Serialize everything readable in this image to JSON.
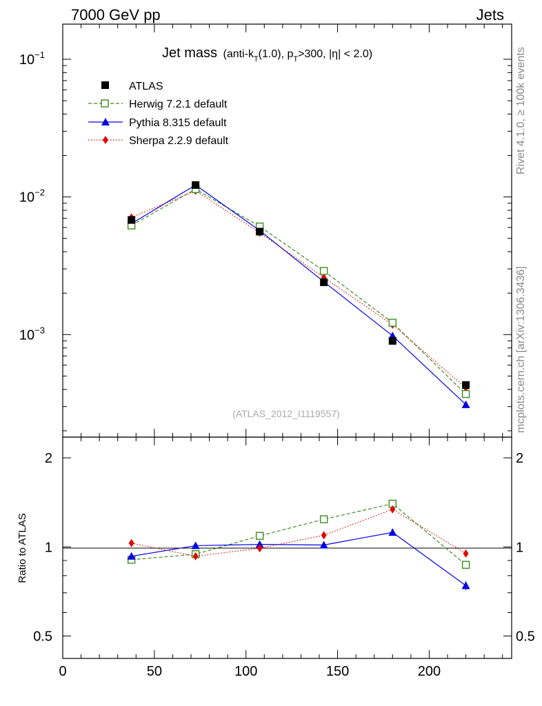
{
  "header": {
    "left": "7000 GeV pp",
    "right": "Jets"
  },
  "side": {
    "rivet": "Rivet 4.1.0, ≥ 100k events",
    "mcplots": "mcplots.cern.ch [arXiv:1306.3436]"
  },
  "title": {
    "main": "Jet mass",
    "paren_open": "(anti-k",
    "kt_sub": "T",
    "kt_rest": "(1.0), p",
    "pt_sub": "T",
    "pt_rest": ">300, |η| < 2.0)"
  },
  "analysis_id": "(ATLAS_2012_I1119557)",
  "colors": {
    "atlas": "#000000",
    "herwig": "#3a8c1a",
    "pythia": "#0000e6",
    "sherpa": "#e60000"
  },
  "chart_data": [
    {
      "type": "line",
      "panel": "main",
      "yscale": "log",
      "xlim": [
        0,
        245
      ],
      "ylim": [
        0.00018,
        0.18
      ],
      "y_ticks": [
        {
          "base": "10",
          "exp": "−1"
        },
        {
          "base": "10",
          "exp": "−2"
        },
        {
          "base": "10",
          "exp": "−3"
        }
      ],
      "x": [
        37.5,
        72.5,
        107.5,
        142.5,
        180,
        220
      ],
      "series": [
        {
          "name": "ATLAS",
          "legend": "ATLAS",
          "values": [
            0.0068,
            0.0122,
            0.0056,
            0.0024,
            0.0009,
            0.00043
          ]
        },
        {
          "name": "Herwig",
          "legend": "Herwig 7.2.1 default",
          "values": [
            0.0062,
            0.0114,
            0.0061,
            0.0029,
            0.00122,
            0.00037
          ]
        },
        {
          "name": "Pythia",
          "legend": "Pythia 8.315 default",
          "values": [
            0.0064,
            0.0122,
            0.0057,
            0.00242,
            0.00098,
            0.00031
          ]
        },
        {
          "name": "Sherpa",
          "legend": "Sherpa 2.2.9 default",
          "values": [
            0.0071,
            0.0111,
            0.0055,
            0.0026,
            0.00118,
            0.00041
          ]
        }
      ]
    },
    {
      "type": "line",
      "panel": "ratio",
      "yscale": "log",
      "ylabel": "Ratio to ATLAS",
      "xlim": [
        0,
        245
      ],
      "ylim": [
        0.42,
        2.35
      ],
      "y_ticks": [
        "2",
        "1",
        "0.5"
      ],
      "x_ticks": [
        "0",
        "50",
        "100",
        "150",
        "200"
      ],
      "x": [
        37.5,
        72.5,
        107.5,
        142.5,
        180,
        220
      ],
      "series": [
        {
          "name": "Herwig",
          "values": [
            0.905,
            0.945,
            1.09,
            1.24,
            1.4,
            0.87
          ]
        },
        {
          "name": "Pythia",
          "values": [
            0.93,
            1.01,
            1.02,
            1.015,
            1.12,
            0.74
          ]
        },
        {
          "name": "Sherpa",
          "values": [
            1.03,
            0.93,
            0.99,
            1.095,
            1.34,
            0.95
          ]
        }
      ]
    }
  ]
}
